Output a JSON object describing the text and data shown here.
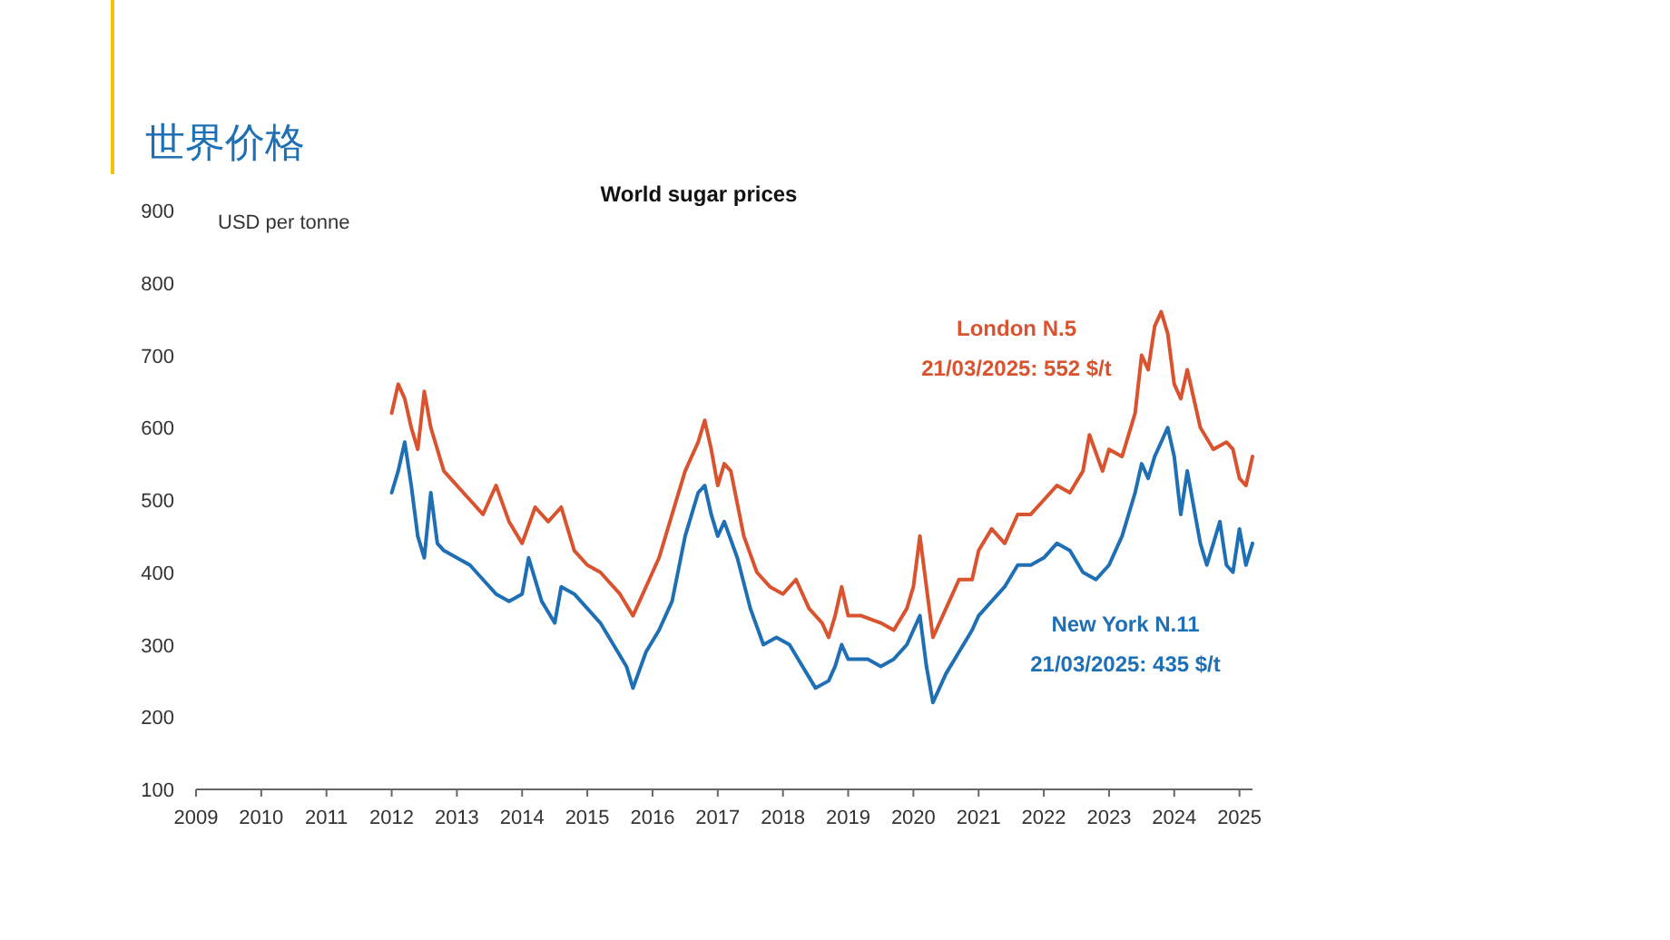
{
  "chart_data": {
    "type": "line",
    "title": "世界价格",
    "subtitle": "World sugar prices",
    "ylabel": "USD per tonne",
    "xlim": [
      2009,
      2025.2
    ],
    "xticks": [
      2009,
      2010,
      2011,
      2012,
      2013,
      2014,
      2015,
      2016,
      2017,
      2018,
      2019,
      2020,
      2021,
      2022,
      2023,
      2024,
      2025
    ],
    "ylim": [
      100,
      900
    ],
    "yticks": [
      100,
      200,
      300,
      400,
      500,
      600,
      700,
      800,
      900
    ],
    "grid": false,
    "line_style": "solid",
    "marker": "none",
    "annotations": [
      "21/03/2025:  552 $/t",
      "21/03/2025:  435 $/t"
    ],
    "series": [
      {
        "name": "London N.5",
        "color": "#d9532f",
        "x": [
          2012.0,
          2012.1,
          2012.2,
          2012.3,
          2012.4,
          2012.5,
          2012.6,
          2012.8,
          2013.0,
          2013.2,
          2013.4,
          2013.6,
          2013.8,
          2014.0,
          2014.2,
          2014.4,
          2014.6,
          2014.8,
          2015.0,
          2015.2,
          2015.5,
          2015.7,
          2015.9,
          2016.1,
          2016.3,
          2016.5,
          2016.7,
          2016.8,
          2016.9,
          2017.0,
          2017.1,
          2017.2,
          2017.4,
          2017.6,
          2017.8,
          2018.0,
          2018.2,
          2018.4,
          2018.6,
          2018.7,
          2018.8,
          2018.9,
          2019.0,
          2019.2,
          2019.5,
          2019.7,
          2019.9,
          2020.0,
          2020.1,
          2020.2,
          2020.3,
          2020.5,
          2020.7,
          2020.9,
          2021.0,
          2021.2,
          2021.4,
          2021.6,
          2021.8,
          2022.0,
          2022.2,
          2022.4,
          2022.6,
          2022.7,
          2022.9,
          2023.0,
          2023.2,
          2023.4,
          2023.5,
          2023.6,
          2023.7,
          2023.8,
          2023.9,
          2024.0,
          2024.1,
          2024.2,
          2024.4,
          2024.6,
          2024.8,
          2024.9,
          2025.0,
          2025.1,
          2025.2
        ],
        "values": [
          620,
          660,
          640,
          600,
          570,
          650,
          600,
          540,
          520,
          500,
          480,
          520,
          470,
          440,
          490,
          470,
          490,
          430,
          410,
          400,
          370,
          340,
          380,
          420,
          480,
          540,
          580,
          610,
          570,
          520,
          550,
          540,
          450,
          400,
          380,
          370,
          390,
          350,
          330,
          310,
          340,
          380,
          340,
          340,
          330,
          320,
          350,
          380,
          450,
          380,
          310,
          350,
          390,
          390,
          430,
          460,
          440,
          480,
          480,
          500,
          520,
          510,
          540,
          590,
          540,
          570,
          560,
          620,
          700,
          680,
          740,
          760,
          730,
          660,
          640,
          680,
          600,
          570,
          580,
          570,
          530,
          520,
          560
        ]
      },
      {
        "name": "New York N.11",
        "color": "#1f6fb5",
        "x": [
          2012.0,
          2012.1,
          2012.2,
          2012.3,
          2012.4,
          2012.5,
          2012.6,
          2012.7,
          2012.8,
          2013.0,
          2013.2,
          2013.4,
          2013.6,
          2013.8,
          2014.0,
          2014.1,
          2014.3,
          2014.5,
          2014.6,
          2014.8,
          2015.0,
          2015.2,
          2015.4,
          2015.6,
          2015.7,
          2015.9,
          2016.1,
          2016.3,
          2016.5,
          2016.7,
          2016.8,
          2016.9,
          2017.0,
          2017.1,
          2017.3,
          2017.5,
          2017.7,
          2017.9,
          2018.1,
          2018.3,
          2018.5,
          2018.7,
          2018.8,
          2018.9,
          2019.0,
          2019.3,
          2019.5,
          2019.7,
          2019.9,
          2020.0,
          2020.1,
          2020.2,
          2020.3,
          2020.5,
          2020.7,
          2020.9,
          2021.0,
          2021.2,
          2021.4,
          2021.6,
          2021.8,
          2022.0,
          2022.2,
          2022.4,
          2022.6,
          2022.8,
          2023.0,
          2023.2,
          2023.4,
          2023.5,
          2023.6,
          2023.7,
          2023.8,
          2023.9,
          2024.0,
          2024.1,
          2024.2,
          2024.4,
          2024.5,
          2024.7,
          2024.8,
          2024.9,
          2025.0,
          2025.1,
          2025.2
        ],
        "values": [
          510,
          540,
          580,
          520,
          450,
          420,
          510,
          440,
          430,
          420,
          410,
          390,
          370,
          360,
          370,
          420,
          360,
          330,
          380,
          370,
          350,
          330,
          300,
          270,
          240,
          290,
          320,
          360,
          450,
          510,
          520,
          480,
          450,
          470,
          420,
          350,
          300,
          310,
          300,
          270,
          240,
          250,
          270,
          300,
          280,
          280,
          270,
          280,
          300,
          320,
          340,
          270,
          220,
          260,
          290,
          320,
          340,
          360,
          380,
          410,
          410,
          420,
          440,
          430,
          400,
          390,
          410,
          450,
          510,
          550,
          530,
          560,
          580,
          600,
          560,
          480,
          540,
          440,
          410,
          470,
          410,
          400,
          460,
          410,
          440
        ]
      }
    ]
  }
}
